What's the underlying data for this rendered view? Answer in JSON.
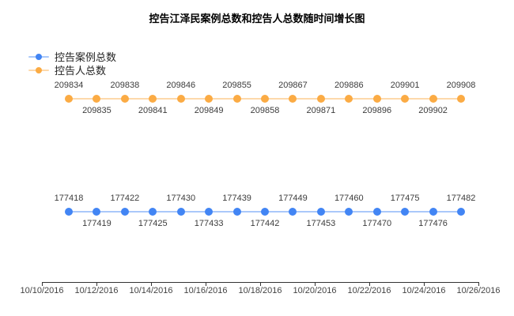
{
  "title": "控告江泽民案例总数和控告人总数随时间增长图",
  "legend": {
    "position": "top-left",
    "items": [
      {
        "label": "控告案例总数",
        "color": "#4285f4"
      },
      {
        "label": "控告人总数",
        "color": "#fbab44"
      }
    ]
  },
  "chart_data": {
    "type": "line",
    "title": "控告江泽民案例总数和控告人总数随时间增长图",
    "x": [
      "10/11/2016",
      "10/12/2016",
      "10/13/2016",
      "10/14/2016",
      "10/15/2016",
      "10/16/2016",
      "10/17/2016",
      "10/18/2016",
      "10/19/2016",
      "10/20/2016",
      "10/21/2016",
      "10/22/2016",
      "10/23/2016",
      "10/24/2016",
      "10/25/2016"
    ],
    "x_axis_tick_labels": [
      "10/10/2016",
      "10/12/2016",
      "10/14/2016",
      "10/16/2016",
      "10/18/2016",
      "10/20/2016",
      "10/22/2016",
      "10/24/2016",
      "10/26/2016"
    ],
    "series": [
      {
        "name": "控告案例总数",
        "color": "#4285f4",
        "line_color": "rgba(66,133,244,0.45)",
        "values": [
          177418,
          177419,
          177422,
          177425,
          177430,
          177433,
          177439,
          177442,
          177449,
          177453,
          177460,
          177470,
          177475,
          177476,
          177482
        ]
      },
      {
        "name": "控告人总数",
        "color": "#fbab44",
        "line_color": "rgba(251,171,68,0.45)",
        "values": [
          209834,
          209835,
          209838,
          209841,
          209846,
          209849,
          209855,
          209858,
          209867,
          209871,
          209886,
          209896,
          209901,
          209902,
          209908
        ]
      }
    ],
    "annotations": "every point labeled with its value, alternating above/below the line",
    "layout": {
      "legend_position": "top-left",
      "grid": false,
      "y_axis_visible": false,
      "x_axis_position": "bottom"
    }
  }
}
